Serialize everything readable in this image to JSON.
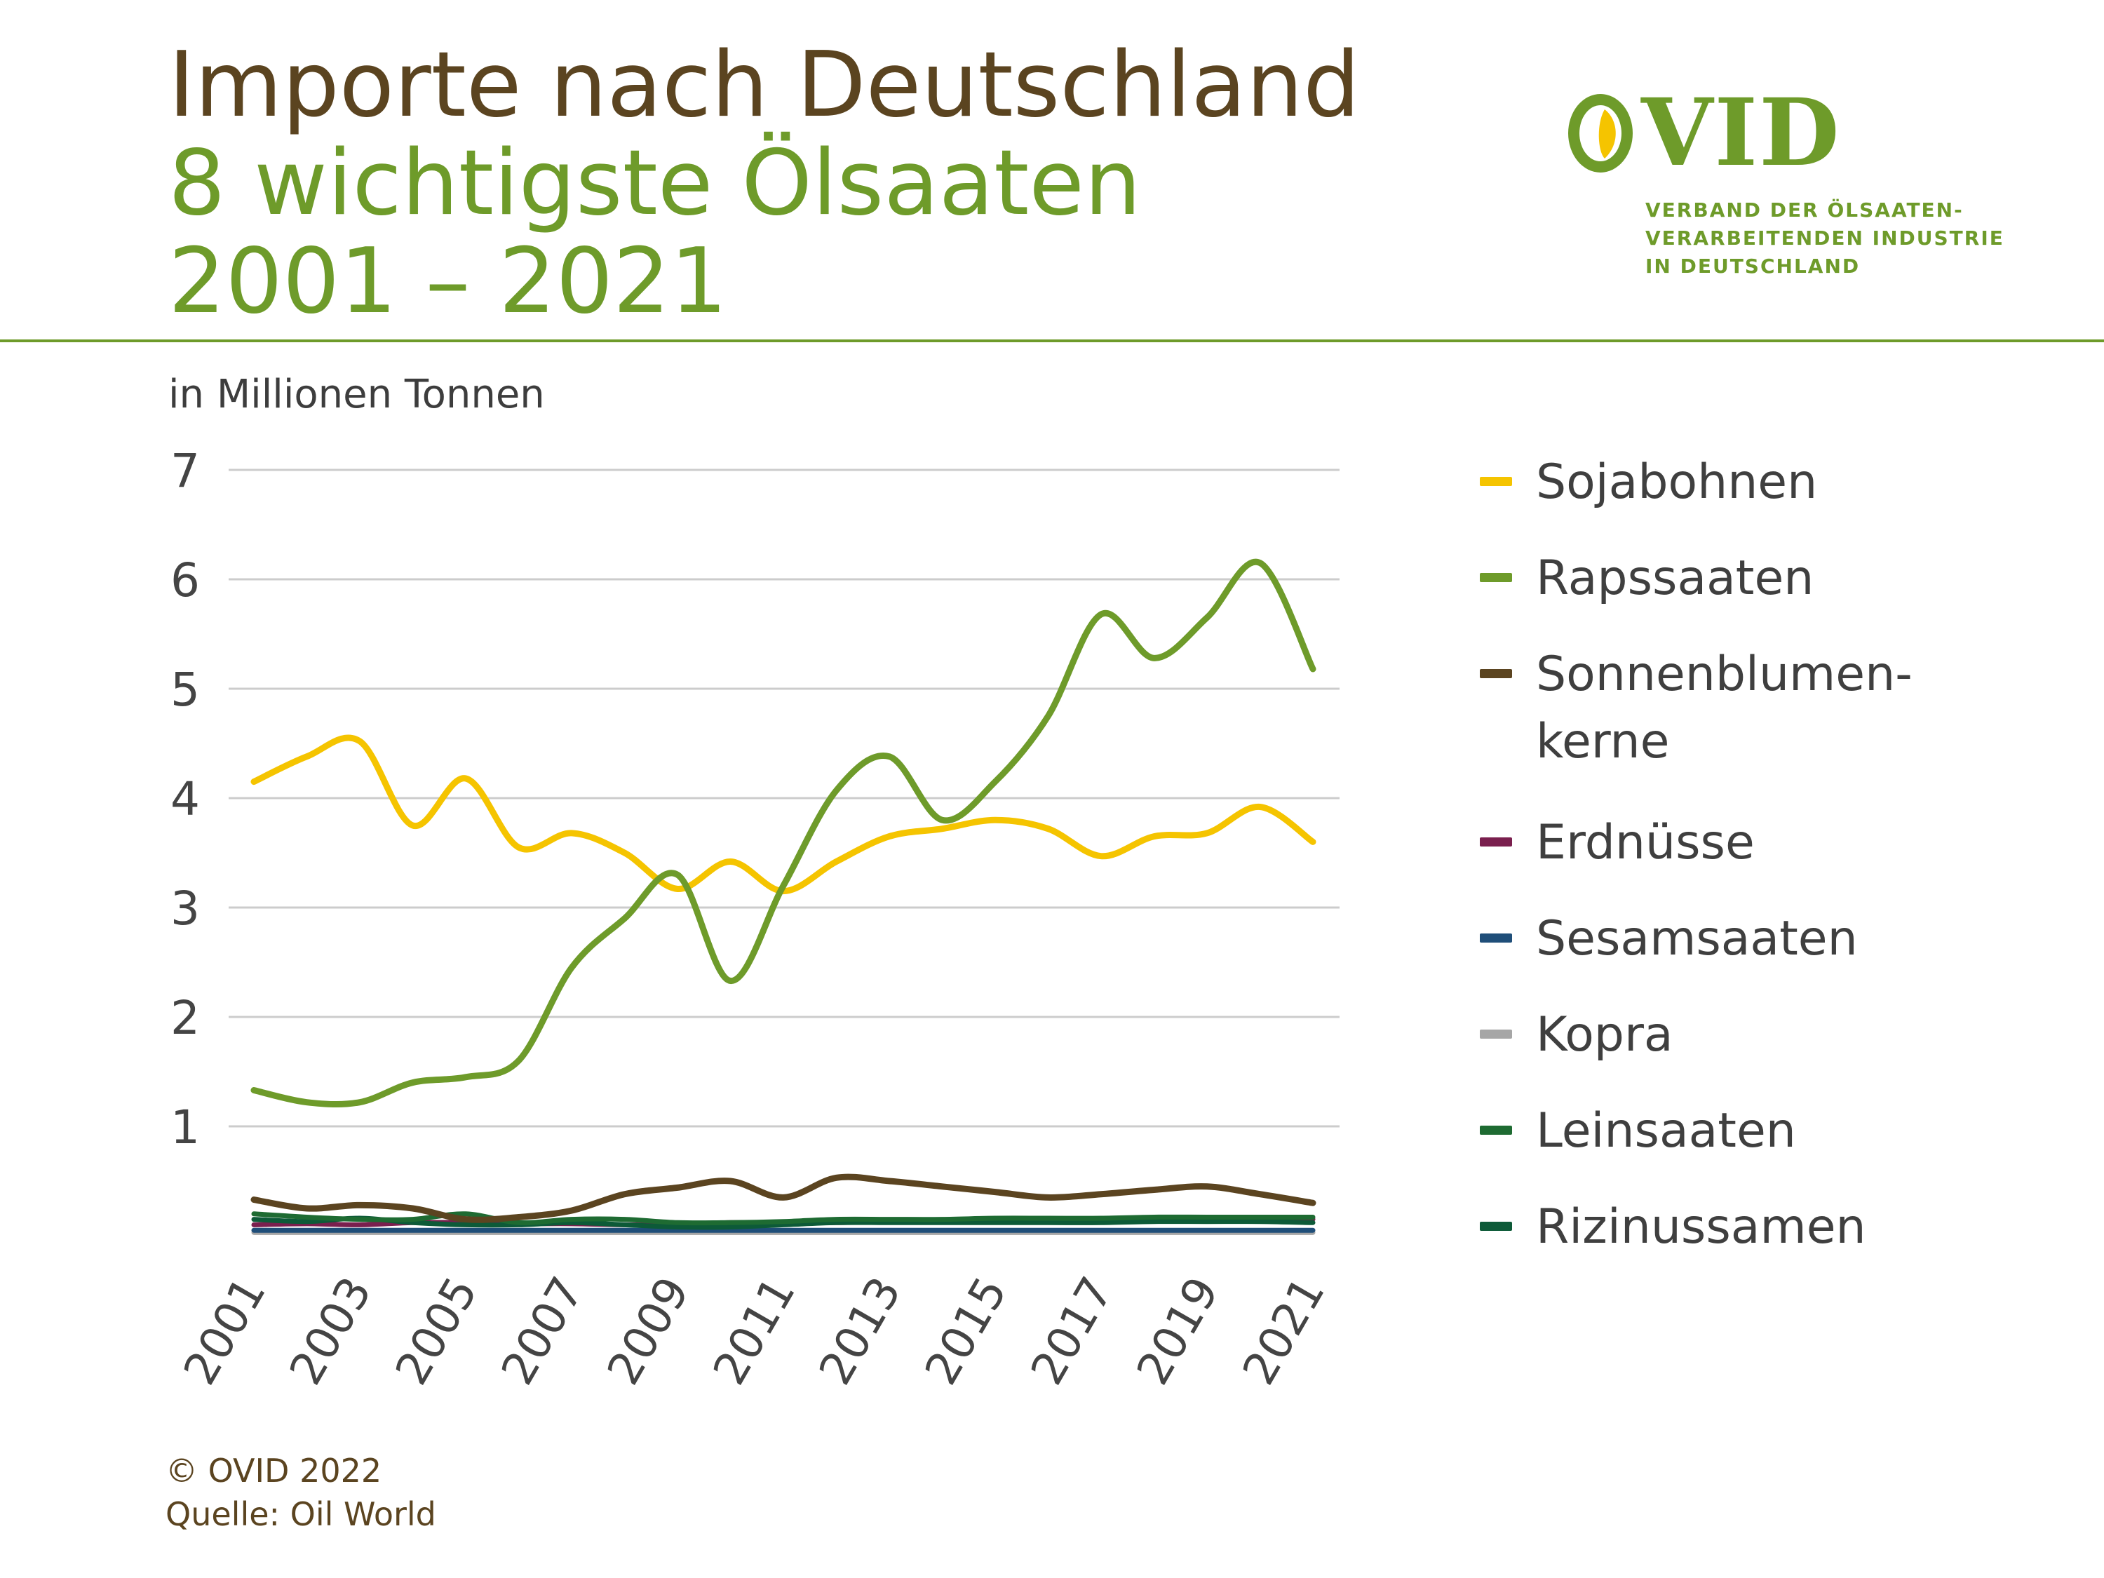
{
  "header": {
    "title_line1": "Importe nach Deutschland",
    "title_line2": "8 wichtigste Ölsaaten",
    "title_line3": "2001 – 2021"
  },
  "logo": {
    "wordmark": "VID",
    "wordmark_full": "OVID",
    "tagline": [
      "VERBAND DER ÖLSAATEN-",
      "VERARBEITENDEN INDUSTRIE",
      "IN DEUTSCHLAND"
    ]
  },
  "unit_label": "in Millionen Tonnen",
  "footer": {
    "copyright": "© OVID 2022",
    "source": "Quelle: Oil World"
  },
  "colors": {
    "brand_green": "#6e9b2a",
    "brand_brown": "#5b4420",
    "grid": "#cccccc"
  },
  "legend_labels": {
    "sunflower_line1": "Sonnenblumen-",
    "sunflower_line2": "kerne"
  },
  "chart_data": {
    "type": "line",
    "x": [
      2001,
      2002,
      2003,
      2004,
      2005,
      2006,
      2007,
      2008,
      2009,
      2010,
      2011,
      2012,
      2013,
      2014,
      2015,
      2016,
      2017,
      2018,
      2019,
      2020,
      2021
    ],
    "x_tick_labels": [
      "2001",
      "2003",
      "2005",
      "2007",
      "2009",
      "2011",
      "2013",
      "2015",
      "2017",
      "2019",
      "2021"
    ],
    "y_ticks": [
      "1",
      "2",
      "3",
      "4",
      "5",
      "6",
      "7"
    ],
    "ylim": [
      0,
      7
    ],
    "ylabel": "in Millionen Tonnen",
    "grid": true,
    "legend_position": "right",
    "series": [
      {
        "name": "Sojabohnen",
        "color": "#f5c400",
        "values": [
          4.15,
          4.38,
          4.52,
          3.75,
          4.18,
          3.55,
          3.68,
          3.5,
          3.17,
          3.42,
          3.15,
          3.42,
          3.65,
          3.72,
          3.8,
          3.72,
          3.47,
          3.65,
          3.68,
          3.92,
          3.6
        ]
      },
      {
        "name": "Rapssaaten",
        "color": "#6e9b2a",
        "values": [
          1.33,
          1.22,
          1.22,
          1.4,
          1.45,
          1.6,
          2.45,
          2.9,
          3.3,
          2.33,
          3.2,
          4.07,
          4.38,
          3.8,
          4.15,
          4.75,
          5.68,
          5.28,
          5.65,
          6.15,
          5.18
        ]
      },
      {
        "name": "Sonnenblumen-kerne",
        "color": "#5b4420",
        "values": [
          0.33,
          0.25,
          0.28,
          0.25,
          0.15,
          0.17,
          0.23,
          0.38,
          0.44,
          0.5,
          0.35,
          0.53,
          0.5,
          0.45,
          0.4,
          0.35,
          0.38,
          0.42,
          0.45,
          0.38,
          0.3
        ]
      },
      {
        "name": "Erdnüsse",
        "color": "#7a1f4e",
        "values": [
          0.1,
          0.11,
          0.1,
          0.12,
          0.12,
          0.11,
          0.11,
          0.1,
          0.1,
          0.12,
          0.12,
          0.12,
          0.13,
          0.13,
          0.14,
          0.14,
          0.14,
          0.14,
          0.15,
          0.15,
          0.15
        ]
      },
      {
        "name": "Sesamsaaten",
        "color": "#1f4e79",
        "values": [
          0.05,
          0.05,
          0.05,
          0.05,
          0.05,
          0.05,
          0.05,
          0.05,
          0.05,
          0.05,
          0.05,
          0.05,
          0.05,
          0.05,
          0.05,
          0.05,
          0.05,
          0.05,
          0.05,
          0.05,
          0.05
        ]
      },
      {
        "name": "Kopra",
        "color": "#a6a6a6",
        "values": [
          0.03,
          0.03,
          0.03,
          0.03,
          0.03,
          0.03,
          0.03,
          0.03,
          0.03,
          0.03,
          0.03,
          0.03,
          0.03,
          0.03,
          0.03,
          0.03,
          0.03,
          0.03,
          0.03,
          0.03,
          0.03
        ]
      },
      {
        "name": "Leinsaaten",
        "color": "#1e6b32",
        "values": [
          0.2,
          0.17,
          0.15,
          0.15,
          0.2,
          0.12,
          0.15,
          0.15,
          0.12,
          0.12,
          0.13,
          0.15,
          0.15,
          0.15,
          0.16,
          0.16,
          0.16,
          0.17,
          0.17,
          0.17,
          0.17
        ]
      },
      {
        "name": "Rizinussamen",
        "color": "#0d5a38",
        "values": [
          0.15,
          0.13,
          0.16,
          0.12,
          0.1,
          0.1,
          0.12,
          0.1,
          0.08,
          0.08,
          0.1,
          0.12,
          0.12,
          0.12,
          0.12,
          0.12,
          0.12,
          0.13,
          0.13,
          0.13,
          0.12
        ]
      }
    ]
  }
}
